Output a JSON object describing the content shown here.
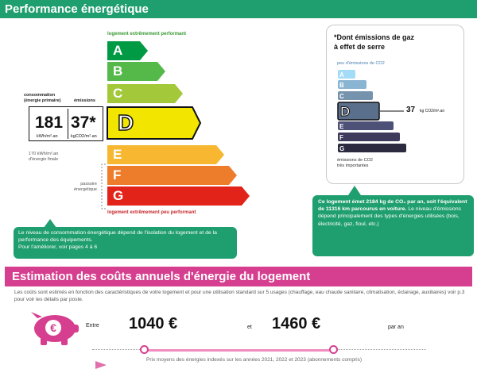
{
  "performance": {
    "title": "Performance énergétique",
    "top_label": "logement extrêmement performant",
    "bottom_label": "logement extrêmement peu performant",
    "consumption_label": "consommation\n(énergie primaire)",
    "emissions_label": "émissions",
    "consumption_value": "181",
    "consumption_unit": "kWh/m².an",
    "emissions_value": "37*",
    "emissions_unit": "kgCO2/m².an",
    "final_energy": "170 kWh/m².an\nd'énergie finale",
    "passoire": "passoire\nénergétique",
    "current_class": "D",
    "classes": [
      {
        "letter": "A",
        "color": "#009a44"
      },
      {
        "letter": "B",
        "color": "#54b948"
      },
      {
        "letter": "C",
        "color": "#a3c83a"
      },
      {
        "letter": "D",
        "color": "#f2e500"
      },
      {
        "letter": "E",
        "color": "#f7b731"
      },
      {
        "letter": "F",
        "color": "#ee7d2b"
      },
      {
        "letter": "G",
        "color": "#e2231a"
      }
    ],
    "note": "Le niveau de consommation énergétique dépend de l'isolation du logement et de la performance des équipements.\nPour l'améliorer, voir pages 4 à 6"
  },
  "ges": {
    "title": "*Dont émissions de gaz\nà effet de serre",
    "sub_label": "peu d'émissions de CO2",
    "bottom_label": "émissions de CO2\ntrès importantes",
    "value": "37",
    "unit": "kg CO2/m².an",
    "current_class": "D",
    "classes": [
      {
        "letter": "A",
        "color": "#a4dbf7"
      },
      {
        "letter": "B",
        "color": "#8ab5d2"
      },
      {
        "letter": "C",
        "color": "#7593ad"
      },
      {
        "letter": "D",
        "color": "#5a6f8c"
      },
      {
        "letter": "E",
        "color": "#4e5177"
      },
      {
        "letter": "F",
        "color": "#3d3a5b"
      },
      {
        "letter": "G",
        "color": "#2b2a3f"
      }
    ],
    "note_bold": "Ce logement émet 2184 kg de CO₂ par an, soit l'équivalent de 11316 km parcourus en voiture.",
    "note_rest": " Le niveau d'émissions dépend principalement des types d'énergies utilisées (bois, électricité, gaz, fioul, etc.)"
  },
  "costs": {
    "title": "Estimation des coûts annuels d'énergie du logement",
    "intro": "Les coûts sont estimés en fonction des caractéristiques de votre logement et pour une utilisation standard sur 5 usages (chauffage, eau chaude sanitaire, climatisation, éclairage, auxiliaires) voir p.3 pour voir les détails par poste.",
    "between": "Entre",
    "low": "1040 €",
    "and": "et",
    "high": "1460 €",
    "per_year": "par an",
    "footer": "Prix moyens des énergies indexés sur les années 2021, 2022 et 2023 (abonnements compris)",
    "icon_symbol": "€",
    "accent": "#d63f8f",
    "light_accent": "#f08cbe"
  }
}
